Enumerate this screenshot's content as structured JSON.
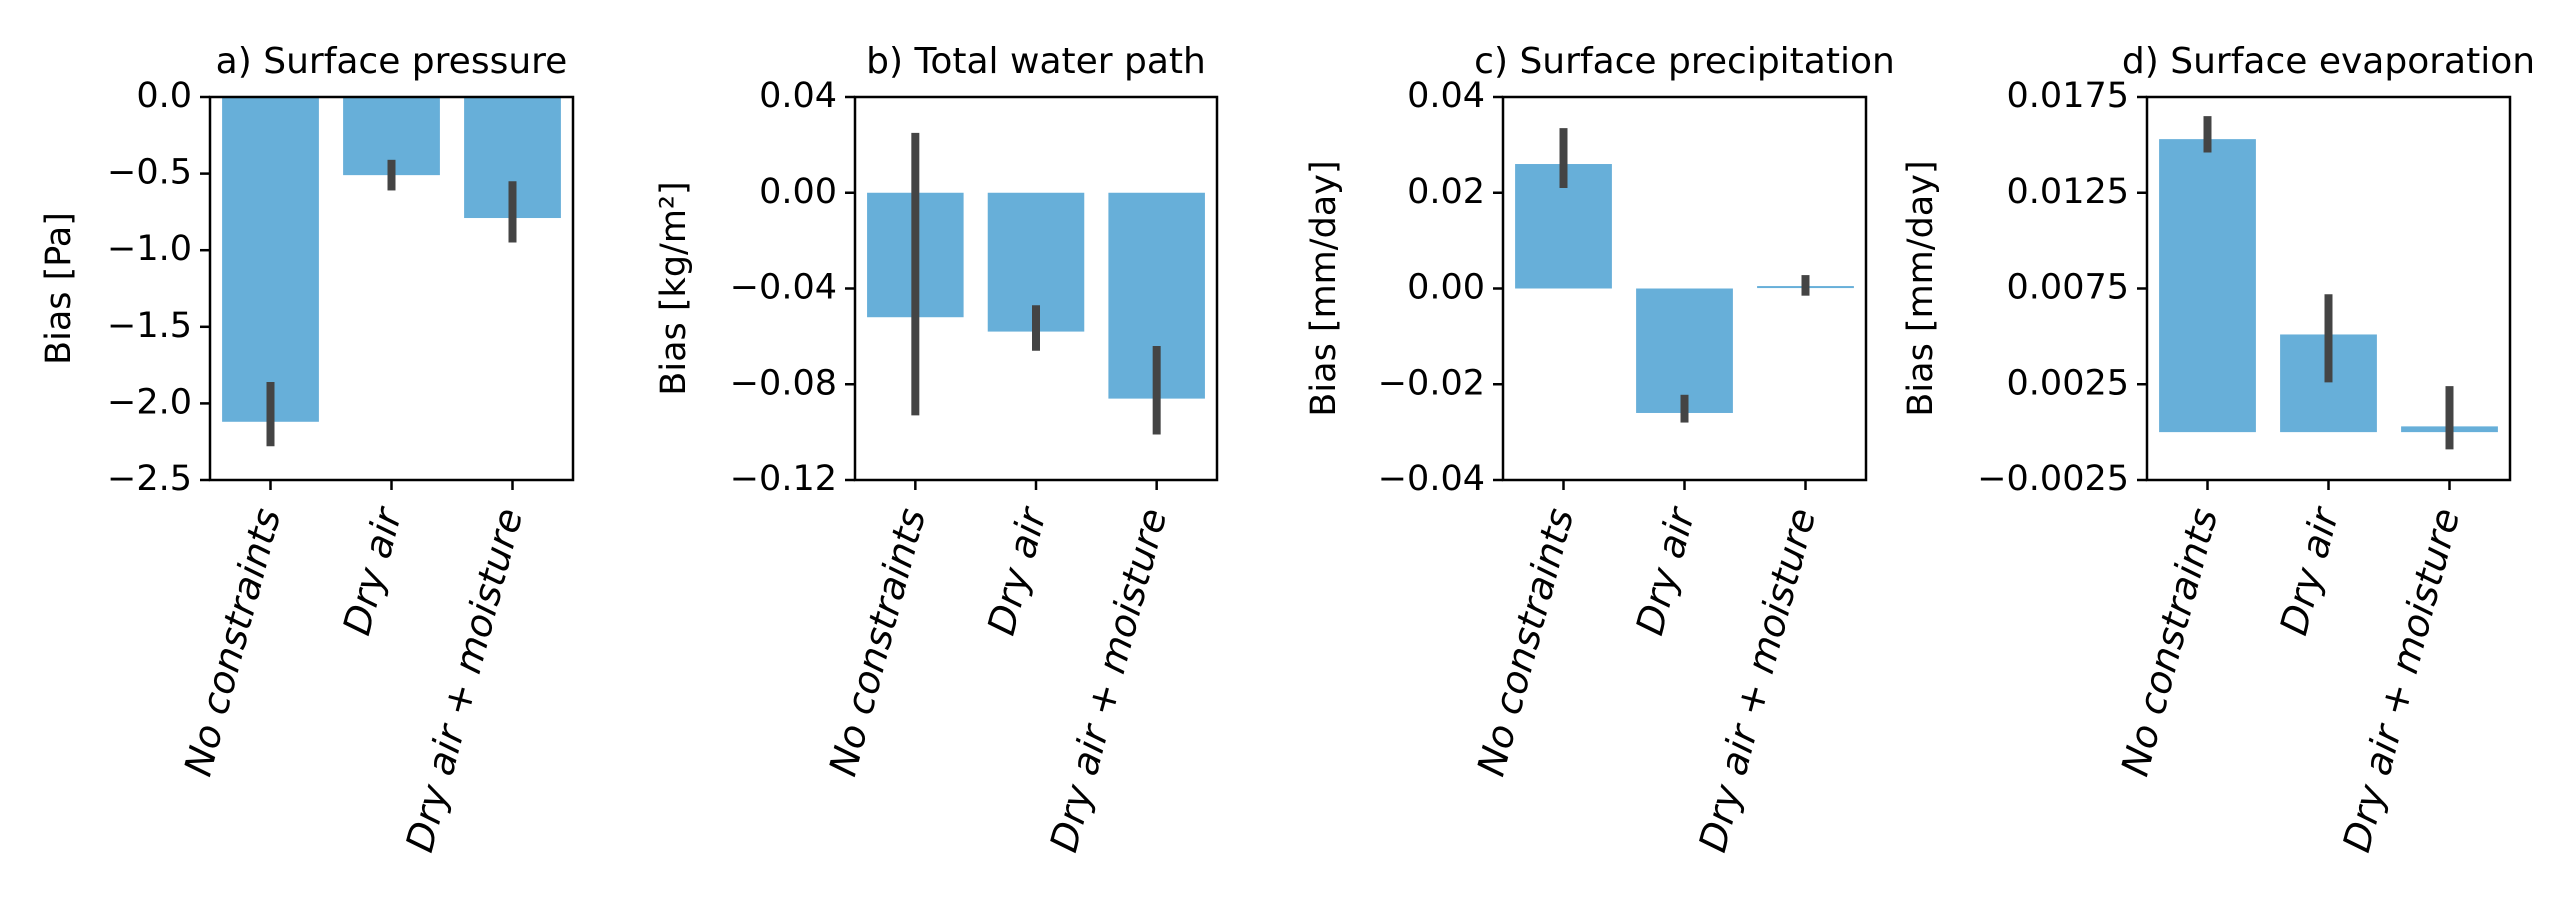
{
  "colors": {
    "bar": "#67afd9",
    "error_bar": "#444444",
    "axes": "#000000",
    "background": "#ffffff"
  },
  "chart_data": [
    {
      "type": "bar",
      "title": "a) Surface pressure",
      "ylabel": "Bias [Pa]",
      "ylim": [
        -2.5,
        0.0
      ],
      "yticks": [
        0.0,
        -0.5,
        -1.0,
        -1.5,
        -2.0,
        -2.5
      ],
      "ytick_labels": [
        "0.0",
        "−0.5",
        "−1.0",
        "−1.5",
        "−2.0",
        "−2.5"
      ],
      "categories": [
        "No constraints",
        "Dry air",
        "Dry air + moisture"
      ],
      "bar_base": 0.0,
      "values": [
        -2.12,
        -0.51,
        -0.79
      ],
      "error_low": [
        -2.28,
        -0.61,
        -0.95
      ],
      "error_high": [
        -1.86,
        -0.41,
        -0.55
      ]
    },
    {
      "type": "bar",
      "title": "b) Total water path",
      "ylabel": "Bias [kg/m²]",
      "ylim": [
        -0.12,
        0.04
      ],
      "yticks": [
        0.04,
        0.0,
        -0.04,
        -0.08,
        -0.12
      ],
      "ytick_labels": [
        "0.04",
        "0.00",
        "−0.04",
        "−0.08",
        "−0.12"
      ],
      "categories": [
        "No constraints",
        "Dry air",
        "Dry air + moisture"
      ],
      "bar_base": 0.0,
      "values": [
        -0.052,
        -0.058,
        -0.086
      ],
      "error_low": [
        -0.093,
        -0.066,
        -0.101
      ],
      "error_high": [
        0.025,
        -0.047,
        -0.064
      ]
    },
    {
      "type": "bar",
      "title": "c) Surface precipitation",
      "ylabel": "Bias [mm/day]",
      "ylim": [
        -0.04,
        0.04
      ],
      "yticks": [
        0.04,
        0.02,
        0.0,
        -0.02,
        -0.04
      ],
      "ytick_labels": [
        "0.04",
        "0.02",
        "0.00",
        "−0.02",
        "−0.04"
      ],
      "categories": [
        "No constraints",
        "Dry air",
        "Dry air + moisture"
      ],
      "bar_base": 0.0,
      "values": [
        0.026,
        -0.026,
        0.0003
      ],
      "error_low": [
        0.021,
        -0.028,
        -0.0015
      ],
      "error_high": [
        0.0335,
        -0.0222,
        0.0028
      ]
    },
    {
      "type": "bar",
      "title": "d) Surface evaporation",
      "ylabel": "Bias [mm/day]",
      "ylim": [
        -0.0025,
        0.0175
      ],
      "yticks": [
        0.0175,
        0.0125,
        0.0075,
        0.0025,
        -0.0025
      ],
      "ytick_labels": [
        "0.0175",
        "0.0125",
        "0.0075",
        "0.0025",
        "−0.0025"
      ],
      "categories": [
        "No constraints",
        "Dry air",
        "Dry air + moisture"
      ],
      "bar_base": 0.0,
      "values": [
        0.0153,
        0.0051,
        0.0003
      ],
      "error_low": [
        0.0146,
        0.0026,
        -0.0009
      ],
      "error_high": [
        0.0165,
        0.0072,
        0.0024
      ]
    }
  ]
}
